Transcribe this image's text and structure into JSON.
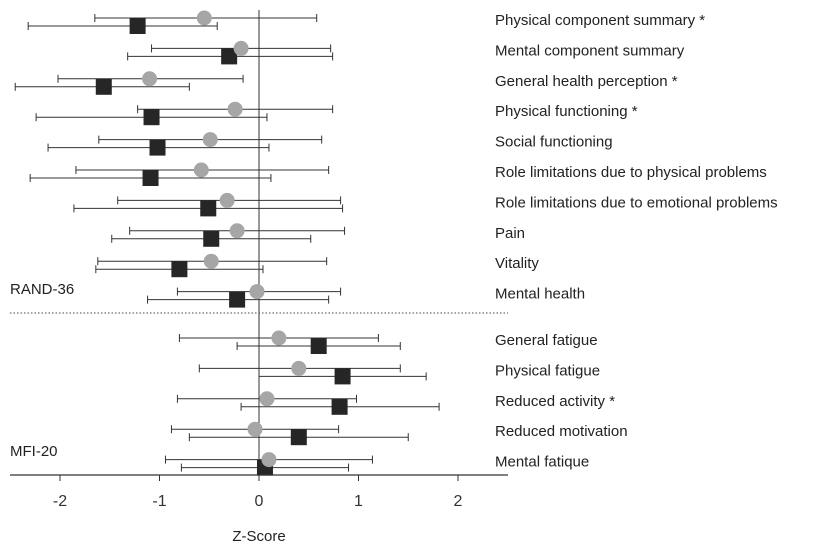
{
  "chart_data": {
    "type": "forest",
    "xlabel": "Z-Score",
    "xlim": [
      -2.5,
      2.5
    ],
    "x_ticks": [
      -2,
      -1,
      0,
      1,
      2
    ],
    "tick_labels": [
      "-2",
      "-1",
      "0",
      "1",
      "2"
    ],
    "colors": {
      "circle": "#a6a6a6",
      "square": "#262626",
      "line": "#333333"
    },
    "groups": [
      {
        "label": "RAND-36",
        "rows": [
          {
            "label": "Physical component summary *",
            "circle": {
              "mean": -0.55,
              "lo": -1.65,
              "hi": 0.58
            },
            "square": {
              "mean": -1.22,
              "lo": -2.32,
              "hi": -0.42
            }
          },
          {
            "label": "Mental component summary",
            "circle": {
              "mean": -0.18,
              "lo": -1.08,
              "hi": 0.72
            },
            "square": {
              "mean": -0.3,
              "lo": -1.32,
              "hi": 0.74
            }
          },
          {
            "label": "General health perception *",
            "circle": {
              "mean": -1.1,
              "lo": -2.02,
              "hi": -0.16
            },
            "square": {
              "mean": -1.56,
              "lo": -2.45,
              "hi": -0.7
            }
          },
          {
            "label": "Physical functioning *",
            "circle": {
              "mean": -0.24,
              "lo": -1.22,
              "hi": 0.74
            },
            "square": {
              "mean": -1.08,
              "lo": -2.24,
              "hi": 0.08
            }
          },
          {
            "label": "Social functioning",
            "circle": {
              "mean": -0.49,
              "lo": -1.61,
              "hi": 0.63
            },
            "square": {
              "mean": -1.02,
              "lo": -2.12,
              "hi": 0.1
            }
          },
          {
            "label": "Role limitations due to physical problems",
            "circle": {
              "mean": -0.58,
              "lo": -1.84,
              "hi": 0.7
            },
            "square": {
              "mean": -1.09,
              "lo": -2.3,
              "hi": 0.12
            }
          },
          {
            "label": "Role limitations due to emotional problems",
            "circle": {
              "mean": -0.32,
              "lo": -1.42,
              "hi": 0.82
            },
            "square": {
              "mean": -0.51,
              "lo": -1.86,
              "hi": 0.84
            }
          },
          {
            "label": "Pain",
            "circle": {
              "mean": -0.22,
              "lo": -1.3,
              "hi": 0.86
            },
            "square": {
              "mean": -0.48,
              "lo": -1.48,
              "hi": 0.52
            }
          },
          {
            "label": "Vitality",
            "circle": {
              "mean": -0.48,
              "lo": -1.62,
              "hi": 0.68
            },
            "square": {
              "mean": -0.8,
              "lo": -1.64,
              "hi": 0.04
            }
          },
          {
            "label": "Mental health",
            "circle": {
              "mean": -0.02,
              "lo": -0.82,
              "hi": 0.82
            },
            "square": {
              "mean": -0.22,
              "lo": -1.12,
              "hi": 0.7
            }
          }
        ]
      },
      {
        "label": "MFI-20",
        "rows": [
          {
            "label": "General fatigue",
            "circle": {
              "mean": 0.2,
              "lo": -0.8,
              "hi": 1.2
            },
            "square": {
              "mean": 0.6,
              "lo": -0.22,
              "hi": 1.42
            }
          },
          {
            "label": "Physical fatigue",
            "circle": {
              "mean": 0.4,
              "lo": -0.6,
              "hi": 1.42
            },
            "square": {
              "mean": 0.84,
              "lo": 0.0,
              "hi": 1.68
            }
          },
          {
            "label": "Reduced activity *",
            "circle": {
              "mean": 0.08,
              "lo": -0.82,
              "hi": 0.98
            },
            "square": {
              "mean": 0.81,
              "lo": -0.18,
              "hi": 1.81
            }
          },
          {
            "label": "Reduced motivation",
            "circle": {
              "mean": -0.04,
              "lo": -0.88,
              "hi": 0.8
            },
            "square": {
              "mean": 0.4,
              "lo": -0.7,
              "hi": 1.5
            }
          },
          {
            "label": "Mental fatique",
            "circle": {
              "mean": 0.1,
              "lo": -0.94,
              "hi": 1.14
            },
            "square": {
              "mean": 0.06,
              "lo": -0.78,
              "hi": 0.9
            }
          }
        ]
      }
    ]
  }
}
